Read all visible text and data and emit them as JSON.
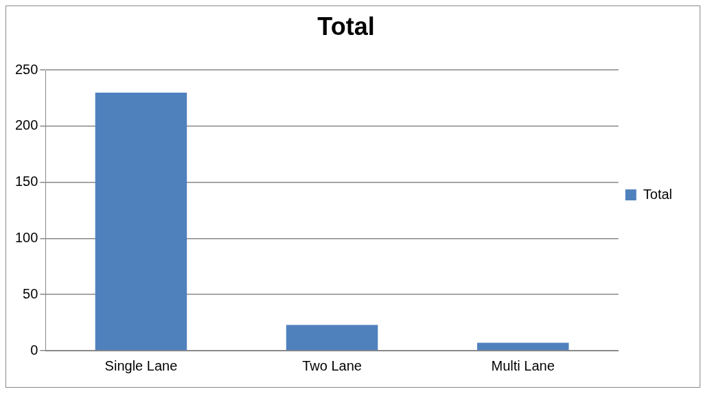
{
  "chart_data": {
    "type": "bar",
    "title": "Total",
    "categories": [
      "Single Lane",
      "Two Lane",
      "Multi Lane"
    ],
    "series": [
      {
        "name": "Total",
        "color": "#4f81bd",
        "values": [
          230,
          23,
          7
        ]
      }
    ],
    "ylim": [
      0,
      250
    ],
    "yticks": [
      0,
      50,
      100,
      150,
      200,
      250
    ],
    "grid": "y",
    "legend": "right"
  }
}
